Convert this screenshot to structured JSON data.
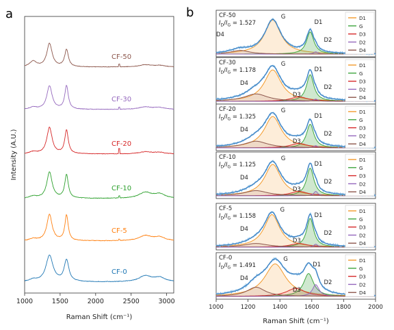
{
  "colors": {
    "spectrum": "#3a7fc1",
    "spectrum_light": "#8fc2e8",
    "D1": "#f39a2b",
    "G": "#3ea53e",
    "D3": "#d62728",
    "D2": "#9467bd",
    "D4": "#8c564b",
    "cf50": "#8c564b",
    "cf30": "#9467bd",
    "cf20": "#d62728",
    "cf10": "#2ca02c",
    "cf5": "#ff7f0e",
    "cf0": "#1f77b4"
  },
  "panel_a": {
    "letter": "a",
    "xlabel": "Raman Shift (cm⁻¹)",
    "ylabel": "Intensity (A.U.)",
    "xlim": [
      1000,
      3100
    ],
    "xticks": [
      1000,
      1500,
      2000,
      2500,
      3000
    ],
    "tick_labels": [
      "1000",
      "1500",
      "2000",
      "2500",
      "3000"
    ],
    "samples": [
      {
        "label": "CF-50",
        "color_key": "cf50",
        "shape": {
          "d_height": 0.55,
          "g_height": 0.4,
          "d_width": 45,
          "g_width": 32,
          "second_order": 0.05,
          "base_bump": 0.13,
          "sharp": 0.06
        }
      },
      {
        "label": "CF-30",
        "color_key": "cf30",
        "shape": {
          "d_height": 0.55,
          "g_height": 0.55,
          "d_width": 45,
          "g_width": 30,
          "second_order": 0.06,
          "base_bump": 0.05,
          "sharp": 0.05
        }
      },
      {
        "label": "CF-20",
        "color_key": "cf20",
        "shape": {
          "d_height": 0.62,
          "g_height": 0.55,
          "d_width": 45,
          "g_width": 30,
          "second_order": 0.05,
          "base_bump": 0.05,
          "sharp": 0.12
        }
      },
      {
        "label": "CF-10",
        "color_key": "cf10",
        "shape": {
          "d_height": 0.62,
          "g_height": 0.55,
          "d_width": 45,
          "g_width": 30,
          "second_order": 0.14,
          "base_bump": 0.05,
          "sharp": 0.05
        }
      },
      {
        "label": "CF-5",
        "color_key": "cf5",
        "shape": {
          "d_height": 0.62,
          "g_height": 0.6,
          "d_width": 45,
          "g_width": 28,
          "second_order": 0.12,
          "base_bump": 0.05,
          "sharp": 0.03
        }
      },
      {
        "label": "CF-0",
        "color_key": "cf0",
        "shape": {
          "d_height": 0.62,
          "g_height": 0.5,
          "d_width": 60,
          "g_width": 40,
          "second_order": 0.14,
          "base_bump": 0.05,
          "sharp": 0.0
        }
      }
    ]
  },
  "panel_b": {
    "letter": "b",
    "xlabel": "Raman Shift (cm⁻¹)",
    "xlim": [
      1000,
      2000
    ],
    "xticks": [
      1000,
      1200,
      1400,
      1600,
      1800,
      2000
    ],
    "tick_labels": [
      "1000",
      "1200",
      "1400",
      "1600",
      "1800",
      "2000"
    ],
    "legend": [
      "D1",
      "G",
      "D3",
      "D2",
      "D4"
    ],
    "peak_labels": {
      "G": "G",
      "D1": "D1",
      "D2": "D2",
      "D3": "D3",
      "D4": "D4"
    },
    "ratio_label": "I",
    "ratio_sub1": "D",
    "ratio_sub2": "G",
    "ratio_sep": "/",
    "ratio_eq": " = ",
    "panels": [
      {
        "sample": "CF-50",
        "ratio": "1.527",
        "d1": [
          1355,
          0.92,
          62
        ],
        "g": [
          1590,
          0.6,
          28
        ],
        "d3": [
          1520,
          0.0,
          70
        ],
        "d2": [
          1625,
          0.06,
          15
        ],
        "d4": [
          1150,
          0.1,
          70
        ]
      },
      {
        "sample": "CF-30",
        "ratio": "1.178",
        "d1": [
          1355,
          0.85,
          65
        ],
        "g": [
          1590,
          0.72,
          28
        ],
        "d3": [
          1520,
          0.12,
          65
        ],
        "d2": [
          1625,
          0.06,
          15
        ],
        "d4": [
          1250,
          0.2,
          90
        ]
      },
      {
        "sample": "CF-20",
        "ratio": "1.325",
        "d1": [
          1355,
          0.85,
          65
        ],
        "g": [
          1590,
          0.64,
          28
        ],
        "d3": [
          1520,
          0.12,
          65
        ],
        "d2": [
          1625,
          0.06,
          15
        ],
        "d4": [
          1250,
          0.18,
          90
        ]
      },
      {
        "sample": "CF-10",
        "ratio": "1.125",
        "d1": [
          1355,
          0.85,
          62
        ],
        "g": [
          1590,
          0.75,
          28
        ],
        "d3": [
          1520,
          0.12,
          65
        ],
        "d2": [
          1625,
          0.12,
          15
        ],
        "d4": [
          1250,
          0.14,
          90
        ]
      },
      {
        "sample": "CF-5",
        "ratio": "1.158",
        "d1": [
          1350,
          0.88,
          60
        ],
        "g": [
          1590,
          0.78,
          27
        ],
        "d3": [
          1520,
          0.1,
          65
        ],
        "d2": [
          1625,
          0.08,
          15
        ],
        "d4": [
          1250,
          0.1,
          90
        ]
      },
      {
        "sample": "CF-0",
        "ratio": "1.491",
        "d1": [
          1370,
          0.88,
          80
        ],
        "g": [
          1580,
          0.62,
          38
        ],
        "d3": [
          1500,
          0.22,
          70
        ],
        "d2": [
          1625,
          0.32,
          25
        ],
        "d4": [
          1250,
          0.25,
          70
        ]
      }
    ]
  }
}
